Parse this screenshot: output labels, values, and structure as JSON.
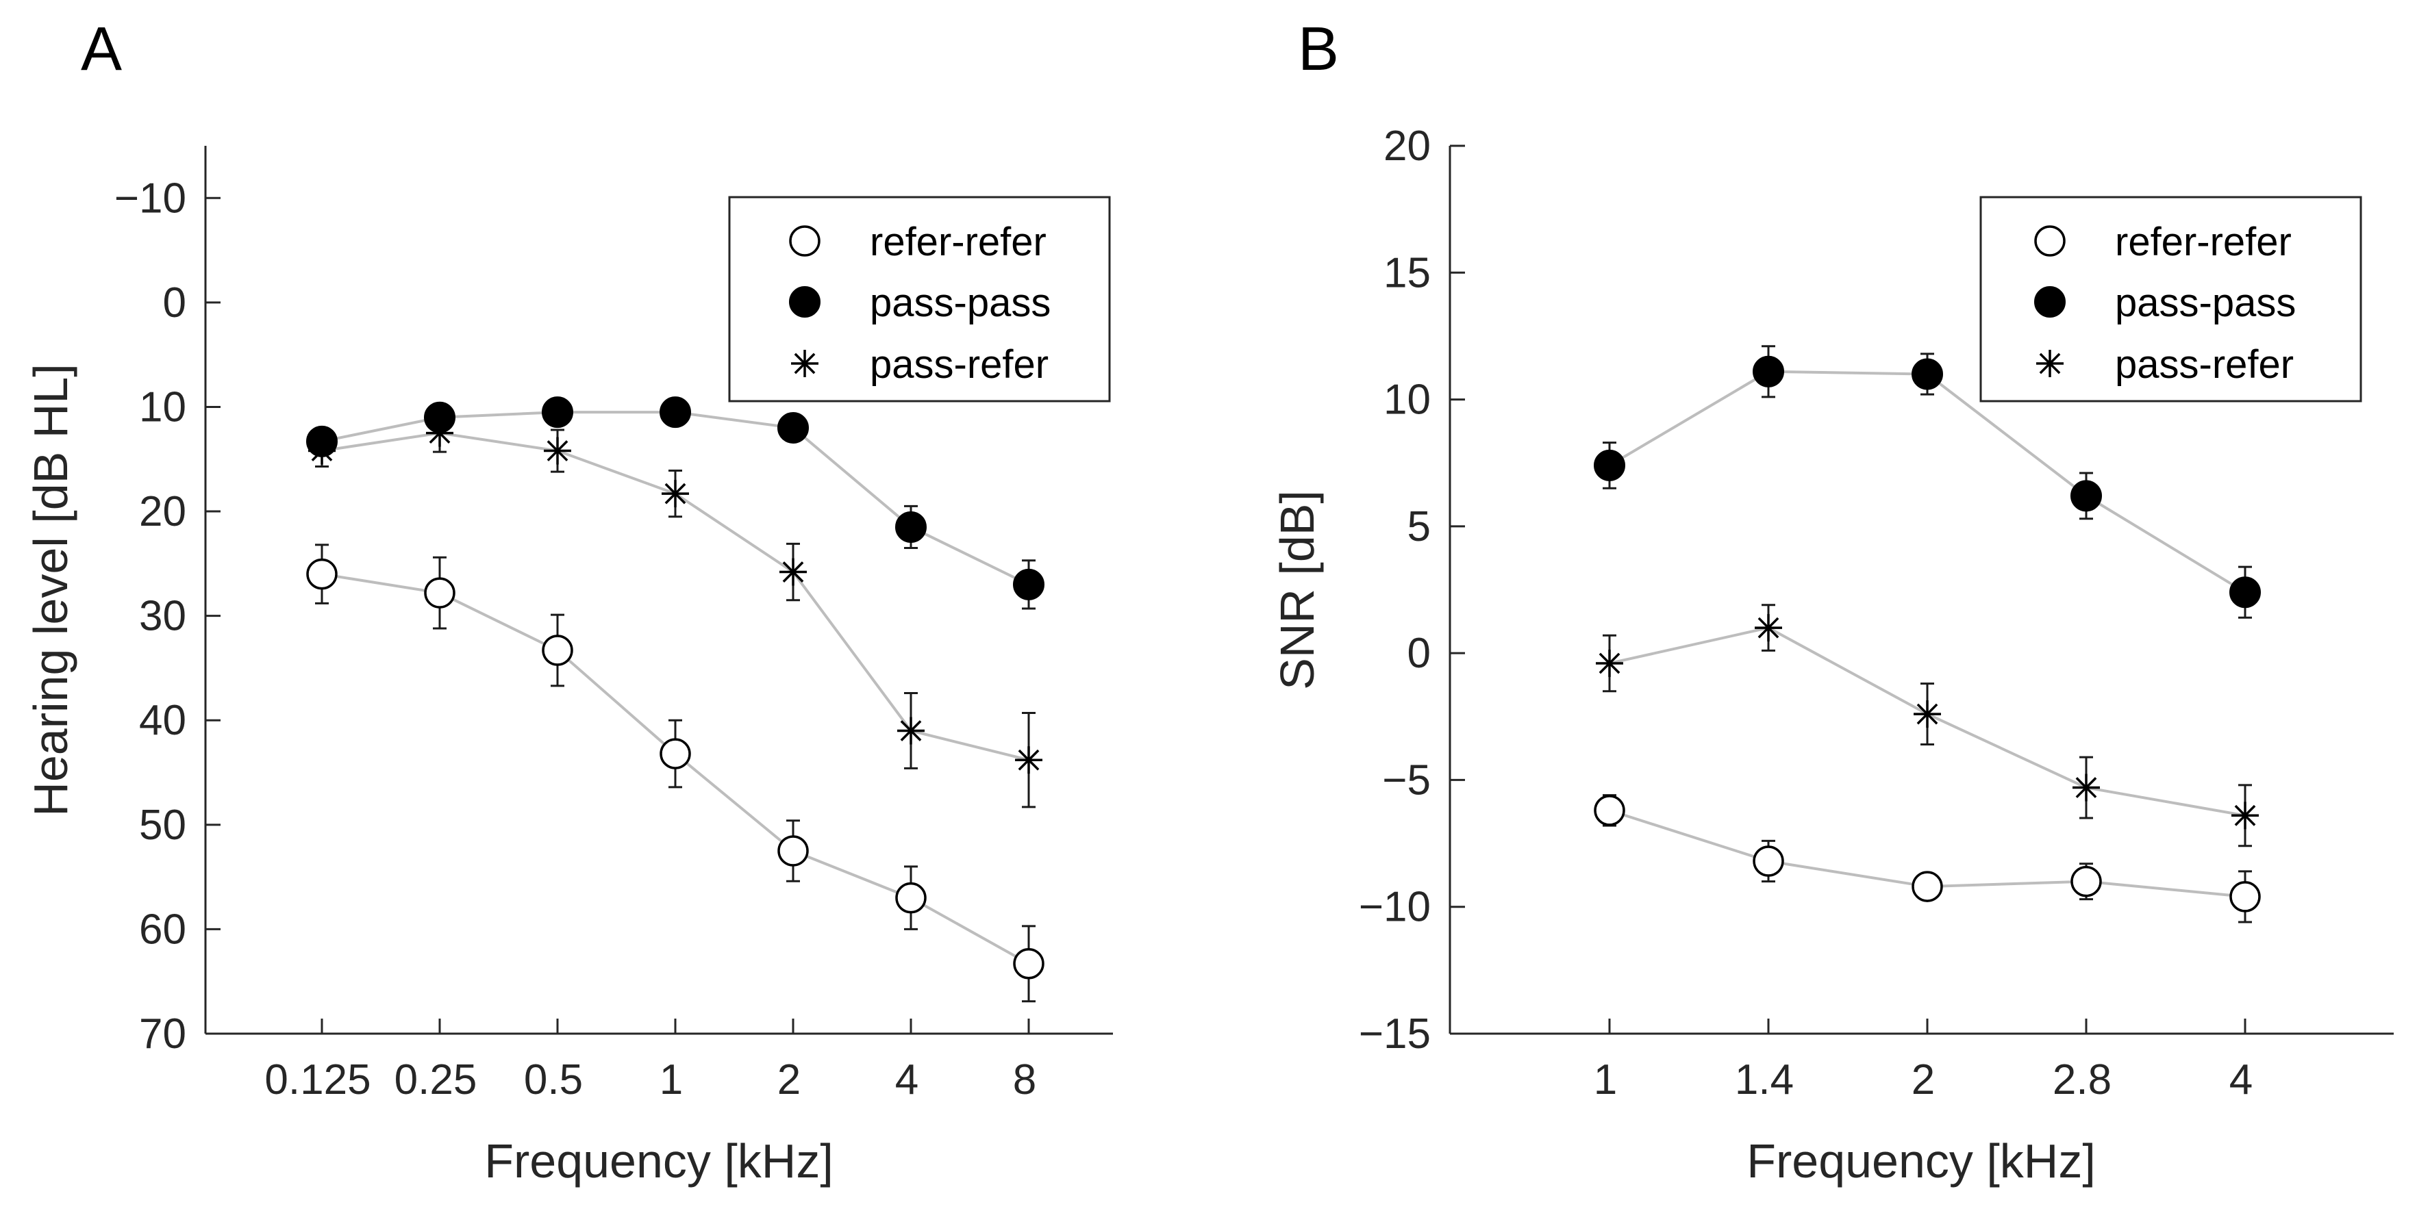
{
  "chart_data": [
    {
      "panel": "A",
      "type": "line",
      "xlabel": "Frequency [kHz]",
      "ylabel": "Hearing level [dB HL]",
      "categories": [
        "0.125",
        "0.25",
        "0.5",
        "1",
        "2",
        "4",
        "8"
      ],
      "ylim": [
        -15,
        70
      ],
      "y_reversed": true,
      "yticks": [
        -10,
        0,
        10,
        20,
        30,
        40,
        50,
        60,
        70
      ],
      "legend_position": "top-right",
      "series": [
        {
          "name": "refer-refer",
          "marker": "open-circle",
          "values": [
            26,
            27.8,
            33.3,
            43.2,
            52.5,
            57,
            63.3
          ],
          "errors": [
            2.8,
            3.4,
            3.4,
            3.2,
            2.9,
            3.0,
            3.6
          ]
        },
        {
          "name": "pass-pass",
          "marker": "filled-circle",
          "values": [
            13.3,
            11,
            10.5,
            10.5,
            12,
            21.5,
            27
          ],
          "errors": [
            1.0,
            0.9,
            0.9,
            0.9,
            1.0,
            2.0,
            2.3
          ]
        },
        {
          "name": "pass-refer",
          "marker": "asterisk",
          "values": [
            14.2,
            12.5,
            14.2,
            18.3,
            25.8,
            41,
            43.8
          ],
          "errors": [
            1.5,
            1.8,
            2.0,
            2.2,
            2.7,
            3.6,
            4.5
          ]
        }
      ]
    },
    {
      "panel": "B",
      "type": "line",
      "xlabel": "Frequency [kHz]",
      "ylabel": "SNR [dB]",
      "categories": [
        "1",
        "1.4",
        "2",
        "2.8",
        "4"
      ],
      "ylim": [
        -15,
        20
      ],
      "y_reversed": false,
      "yticks": [
        -15,
        -10,
        -5,
        0,
        5,
        10,
        15,
        20
      ],
      "legend_position": "top-right",
      "series": [
        {
          "name": "refer-refer",
          "marker": "open-circle",
          "values": [
            -6.2,
            -8.2,
            -9.2,
            -9,
            -9.6
          ],
          "errors": [
            0.6,
            0.8,
            0.4,
            0.7,
            1.0
          ]
        },
        {
          "name": "pass-pass",
          "marker": "filled-circle",
          "values": [
            7.4,
            11.1,
            11,
            6.2,
            2.4
          ],
          "errors": [
            0.9,
            1.0,
            0.8,
            0.9,
            1.0
          ]
        },
        {
          "name": "pass-refer",
          "marker": "asterisk",
          "values": [
            -0.4,
            1,
            -2.4,
            -5.3,
            -6.4
          ],
          "errors": [
            1.1,
            0.9,
            1.2,
            1.2,
            1.2
          ]
        }
      ]
    }
  ]
}
